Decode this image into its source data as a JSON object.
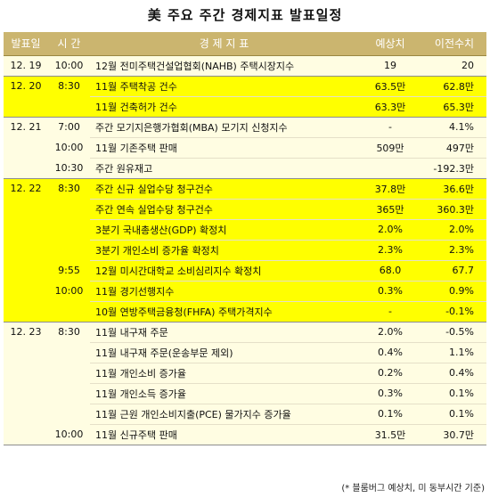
{
  "title": "美 주요 주간 경제지표 발표일정",
  "headers": {
    "date": "발표일",
    "time": "시 간",
    "indicator": "경 제 지 표",
    "expected": "예상치",
    "previous": "이전수치"
  },
  "rows": [
    {
      "date": "12. 19",
      "time": "10:00",
      "indicator": "12월 전미주택건설업협회(NAHB) 주택시장지수",
      "expected": "19",
      "previous": "20"
    },
    {
      "date": "12. 20",
      "time": "8:30",
      "indicator": "11월 주택착공 건수",
      "expected": "63.5만",
      "previous": "62.8만"
    },
    {
      "date": "",
      "time": "",
      "indicator": "11월 건축허가 건수",
      "expected": "63.3만",
      "previous": "65.3만"
    },
    {
      "date": "12. 21",
      "time": "7:00",
      "indicator": "주간 모기지은행가협회(MBA) 모기지 신청지수",
      "expected": "-",
      "previous": "4.1%"
    },
    {
      "date": "",
      "time": "10:00",
      "indicator": "11월 기존주택 판매",
      "expected": "509만",
      "previous": "497만"
    },
    {
      "date": "",
      "time": "10:30",
      "indicator": "주간 원유재고",
      "expected": "",
      "previous": "-192.3만"
    },
    {
      "date": "12. 22",
      "time": "8:30",
      "indicator": "주간 신규 실업수당 청구건수",
      "expected": "37.8만",
      "previous": "36.6만"
    },
    {
      "date": "",
      "time": "",
      "indicator": "주간 연속 실업수당 청구건수",
      "expected": "365만",
      "previous": "360.3만"
    },
    {
      "date": "",
      "time": "",
      "indicator": "3분기 국내총생산(GDP) 확정치",
      "expected": "2.0%",
      "previous": "2.0%"
    },
    {
      "date": "",
      "time": "",
      "indicator": "3분기 개인소비 증가율 확정치",
      "expected": "2.3%",
      "previous": "2.3%"
    },
    {
      "date": "",
      "time": "9:55",
      "indicator": "12월 미시간대학교 소비심리지수 확정치",
      "expected": "68.0",
      "previous": "67.7"
    },
    {
      "date": "",
      "time": "10:00",
      "indicator": "11월 경기선행지수",
      "expected": "0.3%",
      "previous": "0.9%"
    },
    {
      "date": "",
      "time": "",
      "indicator": "10월 연방주택금융청(FHFA) 주택가격지수",
      "expected": "-",
      "previous": "-0.1%"
    },
    {
      "date": "12. 23",
      "time": "8:30",
      "indicator": "11월 내구재 주문",
      "expected": "2.0%",
      "previous": "-0.5%"
    },
    {
      "date": "",
      "time": "",
      "indicator": "11월 내구재 주문(운송부문 제외)",
      "expected": "0.4%",
      "previous": "1.1%"
    },
    {
      "date": "",
      "time": "",
      "indicator": "11월 개인소비 증가율",
      "expected": "0.2%",
      "previous": "0.4%"
    },
    {
      "date": "",
      "time": "",
      "indicator": "11월 개인소득 증가율",
      "expected": "0.3%",
      "previous": "0.1%"
    },
    {
      "date": "",
      "time": "",
      "indicator": "11월 근원 개인소비지출(PCE) 물가지수 증가율",
      "expected": "0.1%",
      "previous": "0.1%"
    },
    {
      "date": "",
      "time": "10:00",
      "indicator": "11월 신규주택 판매",
      "expected": "31.5만",
      "previous": "30.7만"
    }
  ],
  "footnote": "(* 블룸버그 예상치, 미 동부시간 기준)",
  "colors": {
    "header": "#cbb56f",
    "highlight": "#ffff00",
    "cream": "#fffde2"
  }
}
